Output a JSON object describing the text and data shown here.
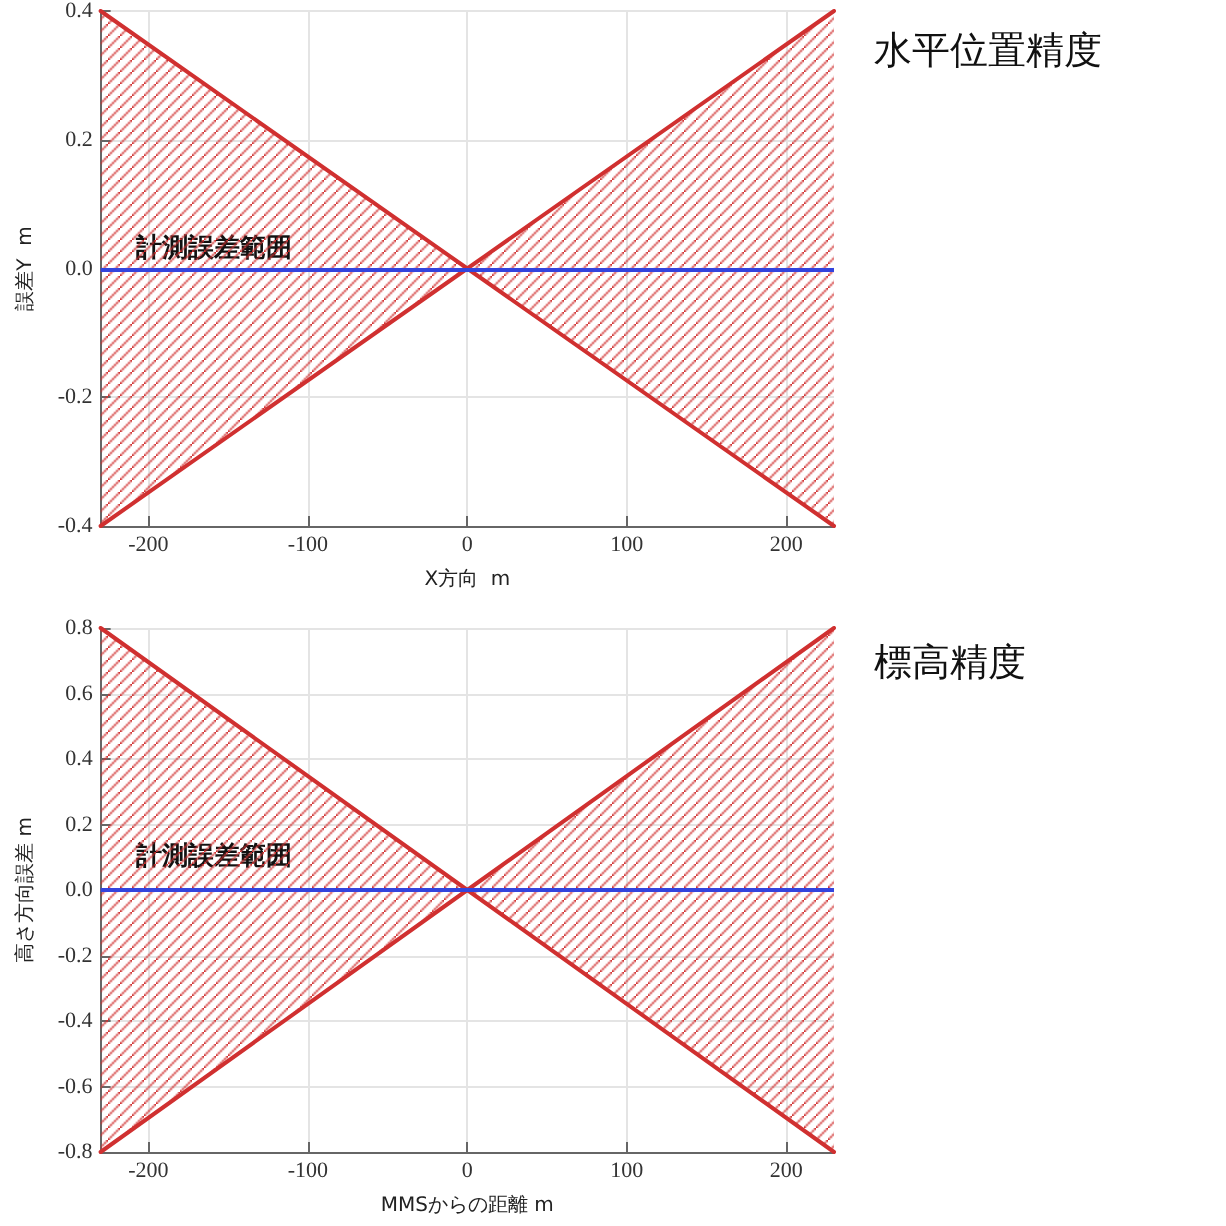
{
  "chart_data": [
    {
      "type": "line",
      "xlabel": "X方向  m",
      "ylabel": "誤差Y  m",
      "annotations": [
        "計測誤差範囲",
        "水平位置精度"
      ],
      "x": [
        -230,
        0,
        230
      ],
      "series": [
        {
          "color": "#d03030",
          "values": [
            0.4,
            0,
            -0.4
          ],
          "lower": [
            -0.4,
            0,
            -0.4
          ],
          "upper": [
            0.4,
            0,
            0.4
          ]
        },
        {
          "color": "#d03030",
          "values": [
            -0.4,
            0,
            0.4
          ]
        }
      ],
      "ref_lines": [
        {
          "axis": "y",
          "value": 0,
          "color": "#3344dd"
        }
      ],
      "xlim": [
        -230,
        230
      ],
      "xticks": [
        -200,
        -100,
        0,
        100,
        200
      ],
      "ylim": [
        -0.4,
        0.4
      ],
      "yticks": [
        -0.4,
        -0.2,
        {
          "value": 0,
          "label": "0.0"
        },
        0.2,
        0.4
      ],
      "grid": true,
      "marker": "none",
      "line_style": "solid"
    },
    {
      "type": "line",
      "xlabel": "MMSからの距離 m",
      "ylabel": "高さ方向誤差 m",
      "annotations": [
        "計測誤差範囲",
        "標高精度"
      ],
      "x": [
        -230,
        0,
        230
      ],
      "series": [
        {
          "color": "#d03030",
          "values": [
            0.8,
            0,
            -0.8
          ],
          "lower": [
            -0.8,
            0,
            -0.8
          ],
          "upper": [
            0.8,
            0,
            0.8
          ]
        },
        {
          "color": "#d03030",
          "values": [
            -0.8,
            0,
            0.8
          ]
        }
      ],
      "ref_lines": [
        {
          "axis": "y",
          "value": 0,
          "color": "#3344dd"
        }
      ],
      "xlim": [
        -230,
        230
      ],
      "xticks": [
        -200,
        -100,
        0,
        100,
        200
      ],
      "ylim": [
        -0.8,
        0.8
      ],
      "yticks": [
        -0.8,
        -0.6,
        -0.4,
        -0.2,
        {
          "value": 0,
          "label": "0.0"
        },
        0.2,
        0.4,
        0.6,
        0.8
      ],
      "grid": true,
      "marker": "none",
      "line_style": "solid"
    }
  ]
}
